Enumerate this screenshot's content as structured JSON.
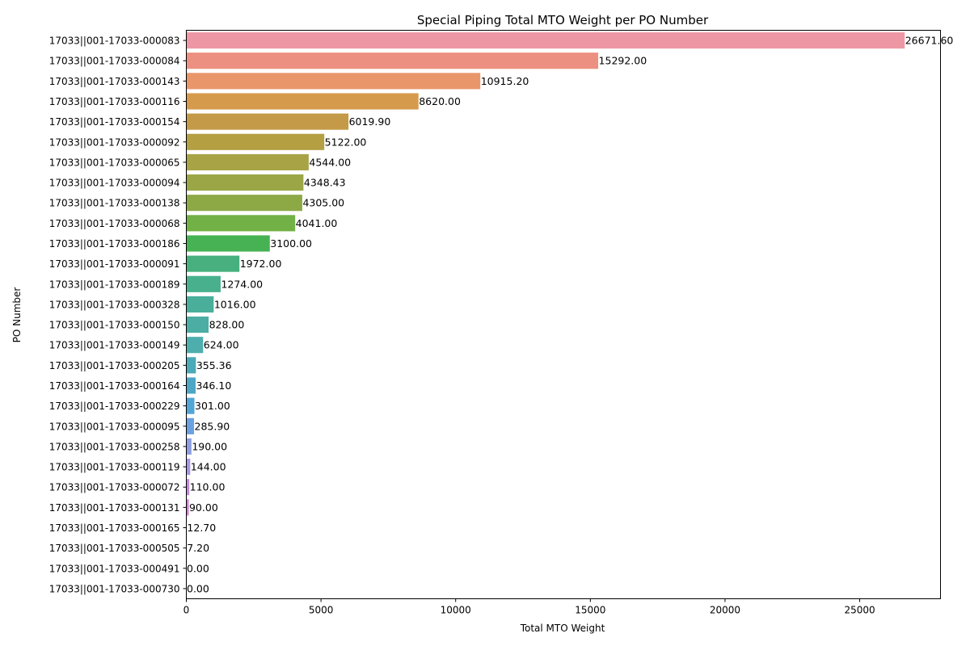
{
  "chart_data": {
    "type": "bar",
    "orientation": "horizontal",
    "title": "Special Piping Total MTO Weight per PO Number",
    "xlabel": "Total MTO Weight",
    "ylabel": "PO Number",
    "xlim": [
      0,
      28000
    ],
    "xticks": [
      0,
      5000,
      10000,
      15000,
      20000,
      25000
    ],
    "grid": false,
    "categories": [
      "17033||001-17033-000083",
      "17033||001-17033-000084",
      "17033||001-17033-000143",
      "17033||001-17033-000116",
      "17033||001-17033-000154",
      "17033||001-17033-000092",
      "17033||001-17033-000065",
      "17033||001-17033-000094",
      "17033||001-17033-000138",
      "17033||001-17033-000068",
      "17033||001-17033-000186",
      "17033||001-17033-000091",
      "17033||001-17033-000189",
      "17033||001-17033-000328",
      "17033||001-17033-000150",
      "17033||001-17033-000149",
      "17033||001-17033-000205",
      "17033||001-17033-000164",
      "17033||001-17033-000229",
      "17033||001-17033-000095",
      "17033||001-17033-000258",
      "17033||001-17033-000119",
      "17033||001-17033-000072",
      "17033||001-17033-000131",
      "17033||001-17033-000165",
      "17033||001-17033-000505",
      "17033||001-17033-000491",
      "17033||001-17033-000730"
    ],
    "values": [
      26671.6,
      15292.0,
      10915.2,
      8620.0,
      6019.9,
      5122.0,
      4544.0,
      4348.43,
      4305.0,
      4041.0,
      3100.0,
      1972.0,
      1274.0,
      1016.0,
      828.0,
      624.0,
      355.36,
      346.1,
      301.0,
      285.9,
      190.0,
      144.0,
      110.0,
      90.0,
      12.7,
      7.2,
      0.0,
      0.0
    ],
    "data_labels": [
      "26671.60",
      "15292.00",
      "10915.20",
      "8620.00",
      "6019.90",
      "5122.00",
      "4544.00",
      "4348.43",
      "4305.00",
      "4041.00",
      "3100.00",
      "1972.00",
      "1274.00",
      "1016.00",
      "828.00",
      "624.00",
      "355.36",
      "346.10",
      "301.00",
      "285.90",
      "190.00",
      "144.00",
      "110.00",
      "90.00",
      "12.70",
      "7.20",
      "0.00",
      "0.00"
    ],
    "colors": [
      "#ee97a4",
      "#ec9081",
      "#e8966a",
      "#d59a4c",
      "#c49a48",
      "#b4a043",
      "#a8a446",
      "#9ba646",
      "#8da946",
      "#72b145",
      "#47b254",
      "#47b07e",
      "#49b08e",
      "#4aaf9a",
      "#4cada4",
      "#4eaeae",
      "#4ba9b8",
      "#4da6c4",
      "#52a6d6",
      "#6ba0e1",
      "#8d9de2",
      "#a795e6",
      "#c08be0",
      "#d57bd8",
      "#e07ccc",
      "#e27fb9",
      "#e486ae",
      "#e98ca6"
    ]
  }
}
